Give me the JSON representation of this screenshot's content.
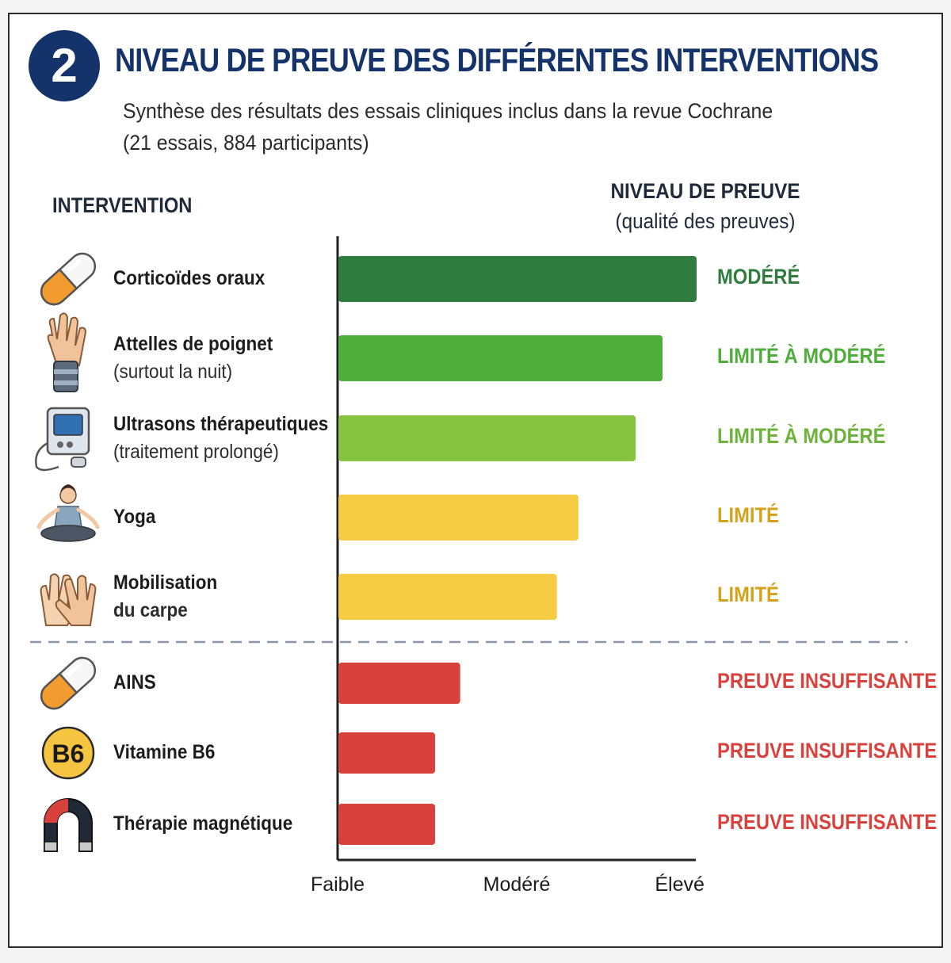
{
  "header": {
    "badge": "2",
    "title": "NIVEAU DE PREUVE DES DIFFÉRENTES INTERVENTIONS",
    "subtitle_line1": "Synthèse des résultats des essais cliniques inclus dans la revue Cochrane",
    "subtitle_line2": "(21 essais, 884 participants)"
  },
  "columns": {
    "intervention": "INTERVENTION",
    "level_title": "NIVEAU DE PREUVE",
    "level_note": "(qualité des preuves)"
  },
  "colors": {
    "dark_green": "#2e7d3e",
    "green": "#4fae3b",
    "light_green": "#86c341",
    "yellow": "#f5cc44",
    "red": "#d9413c",
    "navy": "#15336b",
    "dashed_line": "#8a96a8"
  },
  "chart_data": {
    "type": "bar",
    "orientation": "horizontal",
    "x_ticks": [
      "Faible",
      "Modéré",
      "Élevé"
    ],
    "xlim": [
      0,
      1
    ],
    "grid": false,
    "rows": [
      {
        "name": "Corticoïdes oraux",
        "note": "",
        "level": "MODÉRÉ",
        "value": 1.0,
        "color": "#2e7d3e",
        "icon": "capsule-icon"
      },
      {
        "name": "Attelles de poignet",
        "note": "(surtout la nuit)",
        "level": "LIMITÉ À MODÉRÉ",
        "value": 0.905,
        "color": "#4fae3b",
        "icon": "wrist-splint-icon"
      },
      {
        "name": "Ultrasons thérapeutiques",
        "note": "(traitement prolongé)",
        "level": "LIMITÉ À MODÉRÉ",
        "value": 0.83,
        "color": "#86c341",
        "icon": "ultrasound-device-icon"
      },
      {
        "name": "Yoga",
        "note": "",
        "level": "LIMITÉ",
        "value": 0.67,
        "color": "#f5cc44",
        "icon": "yoga-person-icon"
      },
      {
        "name": "Mobilisation",
        "note": "du carpe",
        "level": "LIMITÉ",
        "value": 0.61,
        "color": "#f5cc44",
        "icon": "hands-icon"
      },
      {
        "name": "AINS",
        "note": "",
        "level": "PREUVE INSUFFISANTE",
        "value": 0.34,
        "color": "#d9413c",
        "icon": "capsule-icon"
      },
      {
        "name": "Vitamine B6",
        "note": "",
        "level": "PREUVE INSUFFISANTE",
        "value": 0.27,
        "color": "#d9413c",
        "icon": "vitamin-b6-icon",
        "icon_text": "B6"
      },
      {
        "name": "Thérapie magnétique",
        "note": "",
        "level": "PREUVE INSUFFISANTE",
        "value": 0.27,
        "color": "#d9413c",
        "icon": "magnet-icon"
      }
    ]
  }
}
